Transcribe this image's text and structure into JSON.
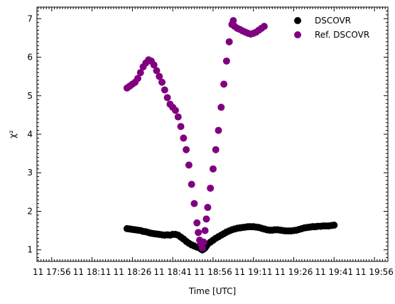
{
  "chart_data": {
    "type": "scatter",
    "title": "",
    "xlabel": "Time [UTC]",
    "ylabel": "χ²",
    "x_ticks": [
      "11 17:56",
      "11 18:11",
      "11 18:26",
      "11 18:41",
      "11 18:56",
      "11 19:11",
      "11 19:26",
      "11 19:41",
      "11 19:56"
    ],
    "x_tick_minutes": [
      0,
      15,
      30,
      45,
      60,
      75,
      90,
      105,
      120
    ],
    "xlim_minutes": [
      -5.5,
      125
    ],
    "y_ticks": [
      1,
      2,
      3,
      4,
      5,
      6,
      7
    ],
    "ylim": [
      0.7,
      7.3
    ],
    "legend_position": "top-right",
    "colors": {
      "DSCOVR": "#000000",
      "Ref. DSCOVR": "#800080"
    },
    "series": [
      {
        "name": "DSCOVR",
        "points": [
          [
            28,
            1.55
          ],
          [
            29,
            1.54
          ],
          [
            30,
            1.53
          ],
          [
            31,
            1.52
          ],
          [
            32,
            1.51
          ],
          [
            33,
            1.5
          ],
          [
            34,
            1.48
          ],
          [
            35,
            1.47
          ],
          [
            36,
            1.45
          ],
          [
            37,
            1.43
          ],
          [
            38,
            1.42
          ],
          [
            39,
            1.41
          ],
          [
            40,
            1.4
          ],
          [
            41,
            1.39
          ],
          [
            42,
            1.38
          ],
          [
            43,
            1.39
          ],
          [
            44,
            1.38
          ],
          [
            45,
            1.4
          ],
          [
            46,
            1.4
          ],
          [
            47,
            1.38
          ],
          [
            48,
            1.33
          ],
          [
            49,
            1.28
          ],
          [
            50,
            1.22
          ],
          [
            51,
            1.17
          ],
          [
            52,
            1.13
          ],
          [
            53,
            1.1
          ],
          [
            54,
            1.07
          ],
          [
            55,
            1.05
          ],
          [
            55.5,
            1.02
          ],
          [
            56,
            1.0
          ],
          [
            56.5,
            1.02
          ],
          [
            57,
            1.05
          ],
          [
            57.5,
            1.1
          ],
          [
            58,
            1.15
          ],
          [
            59,
            1.2
          ],
          [
            60,
            1.25
          ],
          [
            61,
            1.3
          ],
          [
            62,
            1.34
          ],
          [
            63,
            1.38
          ],
          [
            64,
            1.42
          ],
          [
            65,
            1.46
          ],
          [
            66,
            1.49
          ],
          [
            67,
            1.52
          ],
          [
            68,
            1.54
          ],
          [
            69,
            1.56
          ],
          [
            70,
            1.57
          ],
          [
            71,
            1.58
          ],
          [
            72,
            1.59
          ],
          [
            73,
            1.6
          ],
          [
            74,
            1.6
          ],
          [
            75,
            1.6
          ],
          [
            76,
            1.59
          ],
          [
            77,
            1.58
          ],
          [
            78,
            1.56
          ],
          [
            79,
            1.54
          ],
          [
            80,
            1.52
          ],
          [
            81,
            1.51
          ],
          [
            82,
            1.51
          ],
          [
            83,
            1.52
          ],
          [
            84,
            1.52
          ],
          [
            85,
            1.51
          ],
          [
            86,
            1.5
          ],
          [
            87,
            1.49
          ],
          [
            88,
            1.49
          ],
          [
            89,
            1.49
          ],
          [
            90,
            1.5
          ],
          [
            91,
            1.51
          ],
          [
            92,
            1.53
          ],
          [
            93,
            1.55
          ],
          [
            94,
            1.57
          ],
          [
            95,
            1.58
          ],
          [
            96,
            1.59
          ],
          [
            97,
            1.6
          ],
          [
            98,
            1.6
          ],
          [
            99,
            1.61
          ],
          [
            100,
            1.61
          ],
          [
            101,
            1.62
          ],
          [
            102,
            1.62
          ],
          [
            103,
            1.62
          ],
          [
            104,
            1.63
          ],
          [
            105,
            1.64
          ]
        ]
      },
      {
        "name": "Ref. DSCOVR",
        "points": [
          [
            28,
            5.2
          ],
          [
            29,
            5.25
          ],
          [
            30,
            5.3
          ],
          [
            31,
            5.35
          ],
          [
            32,
            5.45
          ],
          [
            33,
            5.6
          ],
          [
            34,
            5.75
          ],
          [
            35,
            5.85
          ],
          [
            36,
            5.93
          ],
          [
            37,
            5.9
          ],
          [
            38,
            5.8
          ],
          [
            39,
            5.65
          ],
          [
            40,
            5.5
          ],
          [
            41,
            5.35
          ],
          [
            42,
            5.15
          ],
          [
            43,
            4.95
          ],
          [
            44,
            4.78
          ],
          [
            45,
            4.7
          ],
          [
            46,
            4.62
          ],
          [
            47,
            4.45
          ],
          [
            48,
            4.2
          ],
          [
            49,
            3.9
          ],
          [
            50,
            3.6
          ],
          [
            51,
            3.2
          ],
          [
            52,
            2.7
          ],
          [
            53,
            2.2
          ],
          [
            54,
            1.7
          ],
          [
            54.5,
            1.45
          ],
          [
            55,
            1.25
          ],
          [
            55.5,
            1.15
          ],
          [
            56,
            1.05
          ],
          [
            56.5,
            1.2
          ],
          [
            57,
            1.5
          ],
          [
            57.5,
            1.8
          ],
          [
            58,
            2.1
          ],
          [
            59,
            2.6
          ],
          [
            60,
            3.1
          ],
          [
            61,
            3.6
          ],
          [
            62,
            4.1
          ],
          [
            63,
            4.7
          ],
          [
            64,
            5.3
          ],
          [
            65,
            5.9
          ],
          [
            66,
            6.4
          ],
          [
            67,
            6.85
          ],
          [
            67.5,
            6.95
          ],
          [
            68,
            6.8
          ],
          [
            69,
            6.75
          ],
          [
            70,
            6.72
          ],
          [
            71,
            6.68
          ],
          [
            72,
            6.65
          ],
          [
            73,
            6.62
          ],
          [
            74,
            6.6
          ],
          [
            75,
            6.62
          ],
          [
            76,
            6.65
          ],
          [
            77,
            6.7
          ],
          [
            78,
            6.75
          ],
          [
            79,
            6.8
          ]
        ]
      }
    ]
  }
}
